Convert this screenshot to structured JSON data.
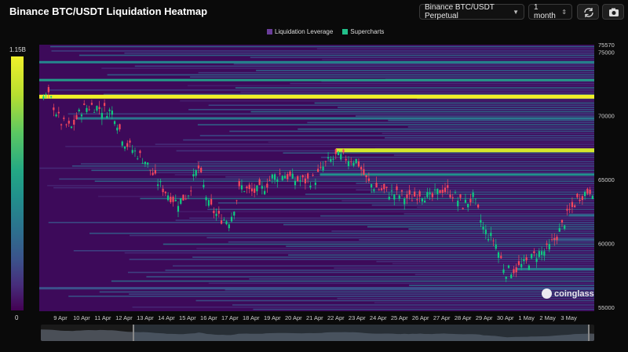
{
  "header": {
    "title": "Binance BTC/USDT Liquidation Heatmap",
    "symbol": "Binance BTC/USDT Perpetual",
    "timeframe": "1 month"
  },
  "toolbar": {
    "refresh_icon": "refresh-icon",
    "camera_icon": "camera-icon"
  },
  "legend": [
    {
      "label": "Liquidation Leverage",
      "color": "#6a3d9a"
    },
    {
      "label": "Supercharts",
      "color": "#22c08a"
    }
  ],
  "colorscale": {
    "max_label": "1.15B",
    "min_label": "0"
  },
  "watermark": "coinglass",
  "chart_data": {
    "type": "heatmap",
    "title": "Binance BTC/USDT Liquidation Heatmap",
    "colorscale_range": [
      "0",
      "1.15B"
    ],
    "y_ticks": [
      75570,
      75000,
      70000,
      65000,
      60000,
      55000
    ],
    "y_tick_labels": [
      "75570",
      "75000",
      "70000",
      "65000",
      "60000",
      "55000"
    ],
    "ylim": [
      54700,
      75570
    ],
    "x_tick_labels": [
      "9 Apr",
      "10 Apr",
      "11 Apr",
      "12 Apr",
      "13 Apr",
      "14 Apr",
      "15 Apr",
      "16 Apr",
      "17 Apr",
      "18 Apr",
      "19 Apr",
      "20 Apr",
      "21 Apr",
      "22 Apr",
      "23 Apr",
      "24 Apr",
      "25 Apr",
      "26 Apr",
      "27 Apr",
      "28 Apr",
      "29 Apr",
      "30 Apr",
      "1 May",
      "2 May",
      "3 May"
    ],
    "price_path_days": [
      8.5,
      9.0,
      9.5,
      10.0,
      10.5,
      11.0,
      11.5,
      12.0,
      12.5,
      13.0,
      13.5,
      14.0,
      14.5,
      15.0,
      15.5,
      16.0,
      16.5,
      17.0,
      17.5,
      18.0,
      18.5,
      19.0,
      19.5,
      20.0,
      20.5,
      21.0,
      21.5,
      22.0,
      22.5,
      23.0,
      23.5,
      24.0,
      24.5,
      25.0,
      25.5,
      26.0,
      26.5,
      27.0,
      27.5,
      28.0,
      28.5,
      29.0,
      29.5,
      30.0,
      30.5,
      31.0,
      31.5,
      32.0,
      32.5,
      33.0,
      33.5,
      34.0
    ],
    "price_path": [
      71500,
      69500,
      69000,
      70500,
      70800,
      70500,
      70300,
      68000,
      67200,
      66500,
      65000,
      64000,
      63200,
      63800,
      66000,
      63000,
      62000,
      61800,
      64500,
      64000,
      64200,
      65200,
      65500,
      65000,
      64900,
      65000,
      66200,
      66800,
      66700,
      66500,
      64800,
      64300,
      64000,
      63800,
      63500,
      64000,
      63500,
      64300,
      63900,
      63000,
      63600,
      61000,
      60200,
      57800,
      58000,
      58500,
      59200,
      59500,
      60800,
      62400,
      63700,
      64200
    ],
    "bands": [
      {
        "price": 71500,
        "intensity": 1.0
      },
      {
        "price": 67300,
        "intensity": 0.95
      },
      {
        "price": 72800,
        "intensity": 0.55
      },
      {
        "price": 74200,
        "intensity": 0.45
      },
      {
        "price": 69800,
        "intensity": 0.4
      },
      {
        "price": 65400,
        "intensity": 0.5
      },
      {
        "price": 62200,
        "intensity": 0.35
      },
      {
        "price": 60300,
        "intensity": 0.3
      },
      {
        "price": 58000,
        "intensity": 0.4
      },
      {
        "price": 56500,
        "intensity": 0.25
      }
    ]
  }
}
